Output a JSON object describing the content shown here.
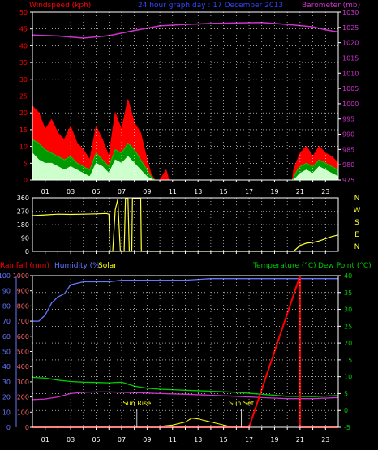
{
  "header": {
    "windspeed_label": "Windspeed (kph)",
    "title": "24 hour graph day : 17 December 2013",
    "barometer_label": "Barometer (mb)"
  },
  "bottom_header": {
    "rainfall_label": "Rainfall (mm)",
    "humidity_label": "Humidity (%)",
    "solar_label": "Solar",
    "temperature_label": "Temperature (°C)",
    "dewpoint_label": "Dew Point (°C)"
  },
  "annotations": {
    "sunrise": "Sun Rise",
    "sunset": "Sun Set"
  },
  "colors": {
    "wind_gust": "#ff0000",
    "wind_avg": "#00cc00",
    "wind_low": "#ccffcc",
    "barometer": "#cc33cc",
    "direction": "#ffff33",
    "rainfall": "#ff0000",
    "humidity": "#6677ff",
    "solar": "#ffff00",
    "temperature": "#00cc00",
    "dewpoint": "#cc33cc",
    "grid": "#ffffff"
  },
  "chart_data": [
    {
      "type": "area",
      "name": "wind-barometer",
      "x_ticks": [
        "01",
        "03",
        "05",
        "07",
        "09",
        "11",
        "13",
        "15",
        "17",
        "19",
        "21",
        "23"
      ],
      "xlim": [
        0,
        24
      ],
      "ylim_left": [
        0,
        50
      ],
      "yticks_left": [
        "0",
        "5",
        "10",
        "15",
        "20",
        "25",
        "30",
        "35",
        "40",
        "45",
        "50"
      ],
      "ylim_right": [
        975,
        1030
      ],
      "yticks_right": [
        "975",
        "980",
        "985",
        "990",
        "995",
        "1000",
        "1005",
        "1010",
        "1015",
        "1020",
        "1025",
        "1030"
      ],
      "gust": [
        [
          0,
          22
        ],
        [
          0.5,
          20
        ],
        [
          1,
          15
        ],
        [
          1.5,
          18
        ],
        [
          2,
          14
        ],
        [
          2.5,
          12
        ],
        [
          3,
          16
        ],
        [
          3.5,
          11
        ],
        [
          4,
          9
        ],
        [
          4.5,
          6
        ],
        [
          5,
          16
        ],
        [
          5.5,
          12
        ],
        [
          6,
          7
        ],
        [
          6.5,
          20
        ],
        [
          7,
          15
        ],
        [
          7.5,
          24
        ],
        [
          8,
          17
        ],
        [
          8.5,
          14
        ],
        [
          9,
          6
        ],
        [
          9.3,
          2
        ],
        [
          9.6,
          0
        ],
        [
          10,
          0
        ],
        [
          10.5,
          3
        ],
        [
          10.7,
          0
        ],
        [
          11,
          0
        ],
        [
          20.4,
          0
        ],
        [
          20.5,
          3
        ],
        [
          20.8,
          6
        ],
        [
          21,
          8
        ],
        [
          21.5,
          10
        ],
        [
          22,
          7
        ],
        [
          22.5,
          10
        ],
        [
          23,
          8
        ],
        [
          23.5,
          7
        ],
        [
          24,
          5
        ]
      ],
      "average": [
        [
          0,
          12
        ],
        [
          0.5,
          11
        ],
        [
          1,
          9
        ],
        [
          1.5,
          8
        ],
        [
          2,
          7
        ],
        [
          2.5,
          6
        ],
        [
          3,
          7
        ],
        [
          3.5,
          5
        ],
        [
          4,
          4
        ],
        [
          4.5,
          3
        ],
        [
          5,
          8
        ],
        [
          5.5,
          6
        ],
        [
          6,
          4
        ],
        [
          6.5,
          9
        ],
        [
          7,
          8
        ],
        [
          7.5,
          11
        ],
        [
          8,
          9
        ],
        [
          8.5,
          6
        ],
        [
          9,
          3
        ],
        [
          9.3,
          1
        ],
        [
          9.6,
          0
        ],
        [
          11,
          0
        ],
        [
          20.4,
          0
        ],
        [
          20.8,
          3
        ],
        [
          21,
          4
        ],
        [
          21.5,
          5
        ],
        [
          22,
          4
        ],
        [
          22.5,
          6
        ],
        [
          23,
          5
        ],
        [
          23.5,
          4
        ],
        [
          24,
          3
        ]
      ],
      "low": [
        [
          0,
          8
        ],
        [
          0.5,
          6
        ],
        [
          1,
          5
        ],
        [
          1.5,
          5
        ],
        [
          2,
          4
        ],
        [
          2.5,
          3
        ],
        [
          3,
          4
        ],
        [
          3.5,
          3
        ],
        [
          4,
          2
        ],
        [
          4.5,
          1
        ],
        [
          5,
          5
        ],
        [
          5.5,
          4
        ],
        [
          6,
          2
        ],
        [
          6.5,
          6
        ],
        [
          7,
          5
        ],
        [
          7.5,
          7
        ],
        [
          8,
          5
        ],
        [
          8.5,
          3
        ],
        [
          9,
          1
        ],
        [
          9.5,
          0
        ],
        [
          11,
          0
        ],
        [
          20.5,
          0
        ],
        [
          21,
          2
        ],
        [
          21.5,
          3
        ],
        [
          22,
          2
        ],
        [
          22.5,
          4
        ],
        [
          23,
          3
        ],
        [
          23.5,
          2
        ],
        [
          24,
          1
        ]
      ],
      "barometer": [
        [
          0,
          1022.5
        ],
        [
          2,
          1022.2
        ],
        [
          4,
          1021.5
        ],
        [
          6,
          1022.3
        ],
        [
          8,
          1024.0
        ],
        [
          10,
          1025.5
        ],
        [
          12,
          1026.0
        ],
        [
          14,
          1026.3
        ],
        [
          16,
          1026.5
        ],
        [
          18,
          1026.6
        ],
        [
          20,
          1026.0
        ],
        [
          22,
          1025.2
        ],
        [
          23,
          1024.2
        ],
        [
          24,
          1023.5
        ]
      ]
    },
    {
      "type": "line",
      "name": "wind-direction",
      "xlim": [
        0,
        24
      ],
      "ylim": [
        0,
        360
      ],
      "yticks": [
        "0",
        "90",
        "180",
        "270",
        "360"
      ],
      "compass_labels": [
        "N",
        "W",
        "S",
        "E",
        "N"
      ],
      "direction": [
        [
          0,
          240
        ],
        [
          1,
          245
        ],
        [
          2,
          250
        ],
        [
          3,
          248
        ],
        [
          4,
          250
        ],
        [
          5,
          252
        ],
        [
          5.8,
          255
        ],
        [
          6.0,
          250
        ],
        [
          6.1,
          0
        ],
        [
          6.3,
          0
        ],
        [
          6.5,
          280
        ],
        [
          6.7,
          350
        ],
        [
          6.9,
          0
        ],
        [
          7.2,
          0
        ],
        [
          7.3,
          355
        ],
        [
          7.5,
          355
        ],
        [
          7.6,
          0
        ],
        [
          7.8,
          0
        ],
        [
          7.85,
          355
        ],
        [
          8.5,
          355
        ],
        [
          8.55,
          0
        ],
        [
          20.5,
          0
        ],
        [
          21.0,
          40
        ],
        [
          21.5,
          55
        ],
        [
          22,
          60
        ],
        [
          22.5,
          70
        ],
        [
          23,
          85
        ],
        [
          23.5,
          100
        ],
        [
          24,
          110
        ]
      ]
    },
    {
      "type": "line",
      "name": "rain-humidity-temperature",
      "xlim": [
        0,
        24
      ],
      "ylim_left": [
        0,
        100
      ],
      "yticks_left_humidity": [
        "0",
        "10",
        "20",
        "30",
        "40",
        "50",
        "60",
        "70",
        "80",
        "90",
        "100"
      ],
      "yticks_left_solar": [
        "0",
        "100",
        "200",
        "300",
        "400",
        "500",
        "600",
        "700",
        "800",
        "900",
        "1000"
      ],
      "ylim_right": [
        -5,
        40
      ],
      "yticks_right": [
        "-5",
        "0",
        "5",
        "10",
        "15",
        "20",
        "25",
        "30",
        "35",
        "40"
      ],
      "humidity": [
        [
          0,
          70
        ],
        [
          0.5,
          70
        ],
        [
          1,
          74
        ],
        [
          1.5,
          82
        ],
        [
          2,
          86
        ],
        [
          2.5,
          88
        ],
        [
          3,
          94
        ],
        [
          3.5,
          95
        ],
        [
          4,
          96
        ],
        [
          5,
          96
        ],
        [
          6,
          96
        ],
        [
          7,
          97
        ],
        [
          8,
          97
        ],
        [
          10,
          97
        ],
        [
          12,
          97
        ],
        [
          14,
          98
        ],
        [
          16,
          98
        ],
        [
          18,
          98
        ],
        [
          20,
          98
        ],
        [
          22,
          98
        ],
        [
          24,
          98
        ]
      ],
      "solar": [
        [
          0,
          0
        ],
        [
          9,
          0
        ],
        [
          9.5,
          3
        ],
        [
          10,
          6
        ],
        [
          11,
          15
        ],
        [
          12,
          35
        ],
        [
          12.5,
          60
        ],
        [
          13,
          55
        ],
        [
          13.5,
          45
        ],
        [
          14,
          35
        ],
        [
          15,
          15
        ],
        [
          15.5,
          5
        ],
        [
          16,
          0
        ],
        [
          24,
          0
        ]
      ],
      "temperature": [
        [
          0,
          9.8
        ],
        [
          1,
          9.6
        ],
        [
          2,
          9.0
        ],
        [
          3,
          8.6
        ],
        [
          4,
          8.4
        ],
        [
          5,
          8.3
        ],
        [
          6,
          8.2
        ],
        [
          7,
          8.4
        ],
        [
          7.5,
          7.8
        ],
        [
          8,
          7.2
        ],
        [
          9,
          6.6
        ],
        [
          10,
          6.3
        ],
        [
          12,
          6.0
        ],
        [
          14,
          5.7
        ],
        [
          16,
          5.4
        ],
        [
          18,
          4.8
        ],
        [
          20,
          4.2
        ],
        [
          22,
          4.1
        ],
        [
          24,
          4.4
        ]
      ],
      "dewpoint": [
        [
          0,
          3.2
        ],
        [
          1,
          3.4
        ],
        [
          2,
          4.0
        ],
        [
          3,
          5.0
        ],
        [
          4,
          5.4
        ],
        [
          5,
          5.5
        ],
        [
          6,
          5.5
        ],
        [
          7,
          5.4
        ],
        [
          8,
          5.3
        ],
        [
          10,
          5.0
        ],
        [
          12,
          4.8
        ],
        [
          14,
          4.5
        ],
        [
          16,
          4.2
        ],
        [
          18,
          3.8
        ],
        [
          20,
          3.5
        ],
        [
          22,
          3.5
        ],
        [
          24,
          3.8
        ]
      ],
      "rainfall": [
        [
          0,
          0
        ],
        [
          17,
          0
        ],
        [
          21,
          100
        ],
        [
          21,
          0
        ],
        [
          24,
          0
        ]
      ],
      "sunrise_hour": 8.2,
      "sunset_hour": 16.4
    }
  ]
}
